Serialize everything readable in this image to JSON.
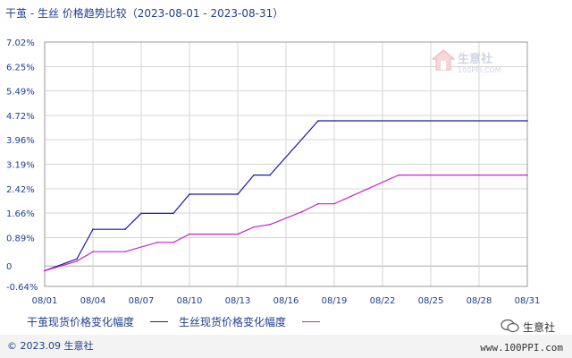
{
  "title": "干茧 - 生丝  价格趋势比较（2023-08-01 - 2023-08-31）",
  "watermark": {
    "name": "生意社",
    "url": "100PPI.COM"
  },
  "footer": {
    "copyright": "© 2023.09 生意社",
    "site": "www.100PPI.com",
    "account": "生意社"
  },
  "colors": {
    "series1": "#1a1aaa",
    "series2": "#cc22cc",
    "axis": "#999999",
    "grid": "#d6d6d6",
    "text": "#1f3f8f"
  },
  "chart_data": {
    "type": "line",
    "title": "干茧 - 生丝  价格趋势比较（2023-08-01 - 2023-08-31）",
    "xlabel": "",
    "ylabel": "",
    "x_ticks": [
      "08/01",
      "08/04",
      "08/07",
      "08/10",
      "08/13",
      "08/16",
      "08/19",
      "08/22",
      "08/25",
      "08/28",
      "08/31"
    ],
    "y_ticks": [
      "-0.64%",
      "0",
      "0.89%",
      "1.66%",
      "2.42%",
      "3.19%",
      "3.96%",
      "4.72%",
      "5.49%",
      "6.25%",
      "7.02%"
    ],
    "y_tick_values": [
      -0.64,
      0,
      0.89,
      1.66,
      2.42,
      3.19,
      3.96,
      4.72,
      5.49,
      6.25,
      7.02
    ],
    "ylim": [
      -0.64,
      7.02
    ],
    "xlim": [
      "08/01",
      "08/31"
    ],
    "grid": true,
    "legend_position": "bottom",
    "series": [
      {
        "name": "干茧现货价格变化幅度",
        "x": [
          "08/01",
          "08/03",
          "08/04",
          "08/06",
          "08/07",
          "08/09",
          "08/10",
          "08/13",
          "08/14",
          "08/15",
          "08/18",
          "08/31"
        ],
        "values": [
          -0.15,
          0.22,
          1.15,
          1.15,
          1.65,
          1.65,
          2.25,
          2.25,
          2.85,
          2.85,
          4.55,
          4.55
        ]
      },
      {
        "name": "生丝现货价格变化幅度",
        "x": [
          "08/01",
          "08/03",
          "08/04",
          "08/06",
          "08/08",
          "08/09",
          "08/10",
          "08/13",
          "08/14",
          "08/15",
          "08/17",
          "08/18",
          "08/19",
          "08/23",
          "08/31"
        ],
        "values": [
          -0.15,
          0.15,
          0.45,
          0.45,
          0.74,
          0.74,
          1.0,
          1.0,
          1.22,
          1.3,
          1.7,
          1.95,
          1.95,
          2.85,
          2.85
        ]
      }
    ]
  }
}
